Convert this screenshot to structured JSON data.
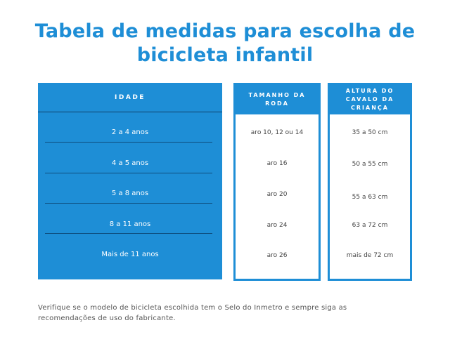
{
  "title": {
    "line1": "Tabela de medidas para escolha de",
    "line2": "bicicleta infantil"
  },
  "table": {
    "headers": {
      "age": "IDADE",
      "wheel": [
        "TAMANHO DA",
        "RODA"
      ],
      "height": [
        "ALTURA DO",
        "CAVALO DA",
        "CRIANÇA"
      ]
    },
    "rows": [
      {
        "age": "2 a 4 anos",
        "wheel": "aro 10, 12 ou 14",
        "height": "35 a 50 cm"
      },
      {
        "age": "4 a 5 anos",
        "wheel": "aro 16",
        "height": "50 a 55 cm"
      },
      {
        "age": "5 a 8 anos",
        "wheel": "aro 20",
        "height": "55 a 63 cm"
      },
      {
        "age": "8 a 11 anos",
        "wheel": "aro 24",
        "height": "63 a 72 cm"
      },
      {
        "age": "Mais de 11 anos",
        "wheel": "aro 26",
        "height": "mais de 72 cm"
      }
    ]
  },
  "note": {
    "line1": "Verifique se o modelo de bicicleta escolhida tem o Selo do Inmetro e sempre siga as",
    "line2": "recomendações de uso do fabricante."
  },
  "colors": {
    "accent": "#1e8ed6",
    "divider": "#0e4d7d",
    "text": "#444444"
  }
}
